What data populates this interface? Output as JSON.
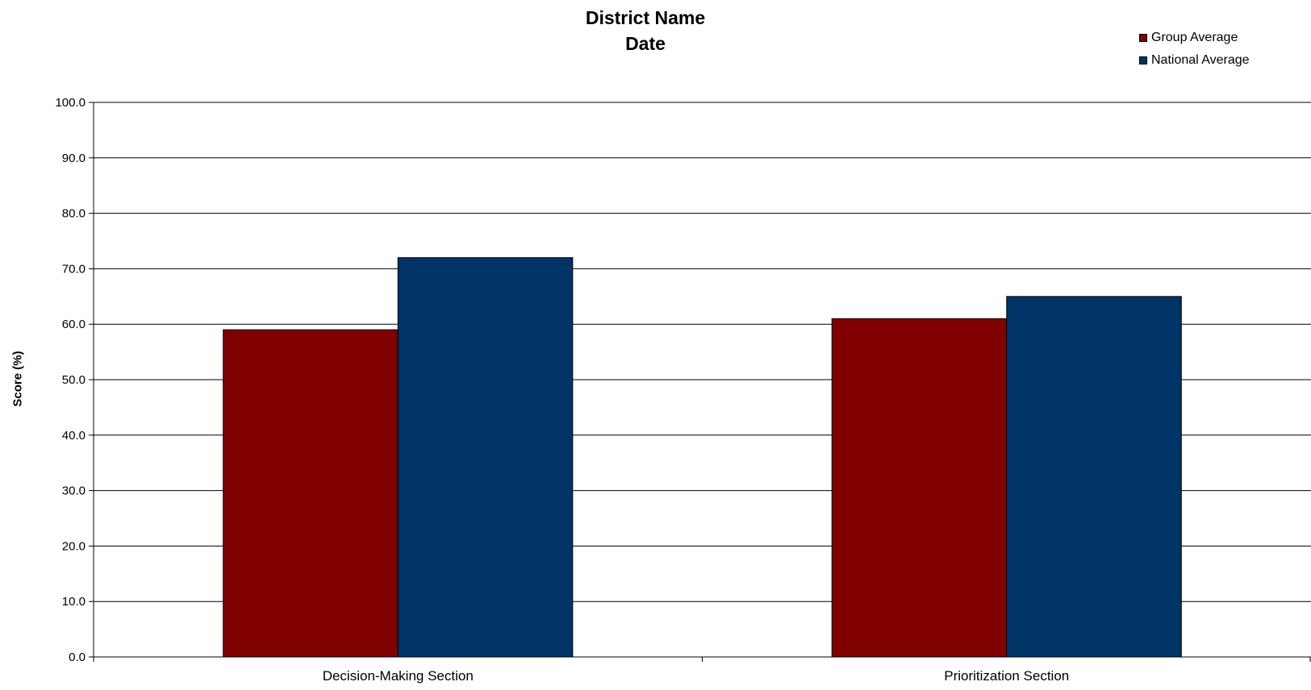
{
  "chart_data": {
    "type": "bar",
    "title": [
      "District Name",
      "Date"
    ],
    "xlabel": "",
    "ylabel": "Score (%)",
    "ylim": [
      0,
      100
    ],
    "yticks": [
      "0.0",
      "10.0",
      "20.0",
      "30.0",
      "40.0",
      "50.0",
      "60.0",
      "70.0",
      "80.0",
      "90.0",
      "100.0"
    ],
    "categories": [
      "Decision-Making Section",
      "Prioritization Section"
    ],
    "series": [
      {
        "name": "Group Average",
        "color": "#800000",
        "values": [
          59,
          61
        ]
      },
      {
        "name": "National Average",
        "color": "#003366",
        "values": [
          72,
          65
        ]
      }
    ],
    "grid": true,
    "legend_position": "top-right"
  }
}
